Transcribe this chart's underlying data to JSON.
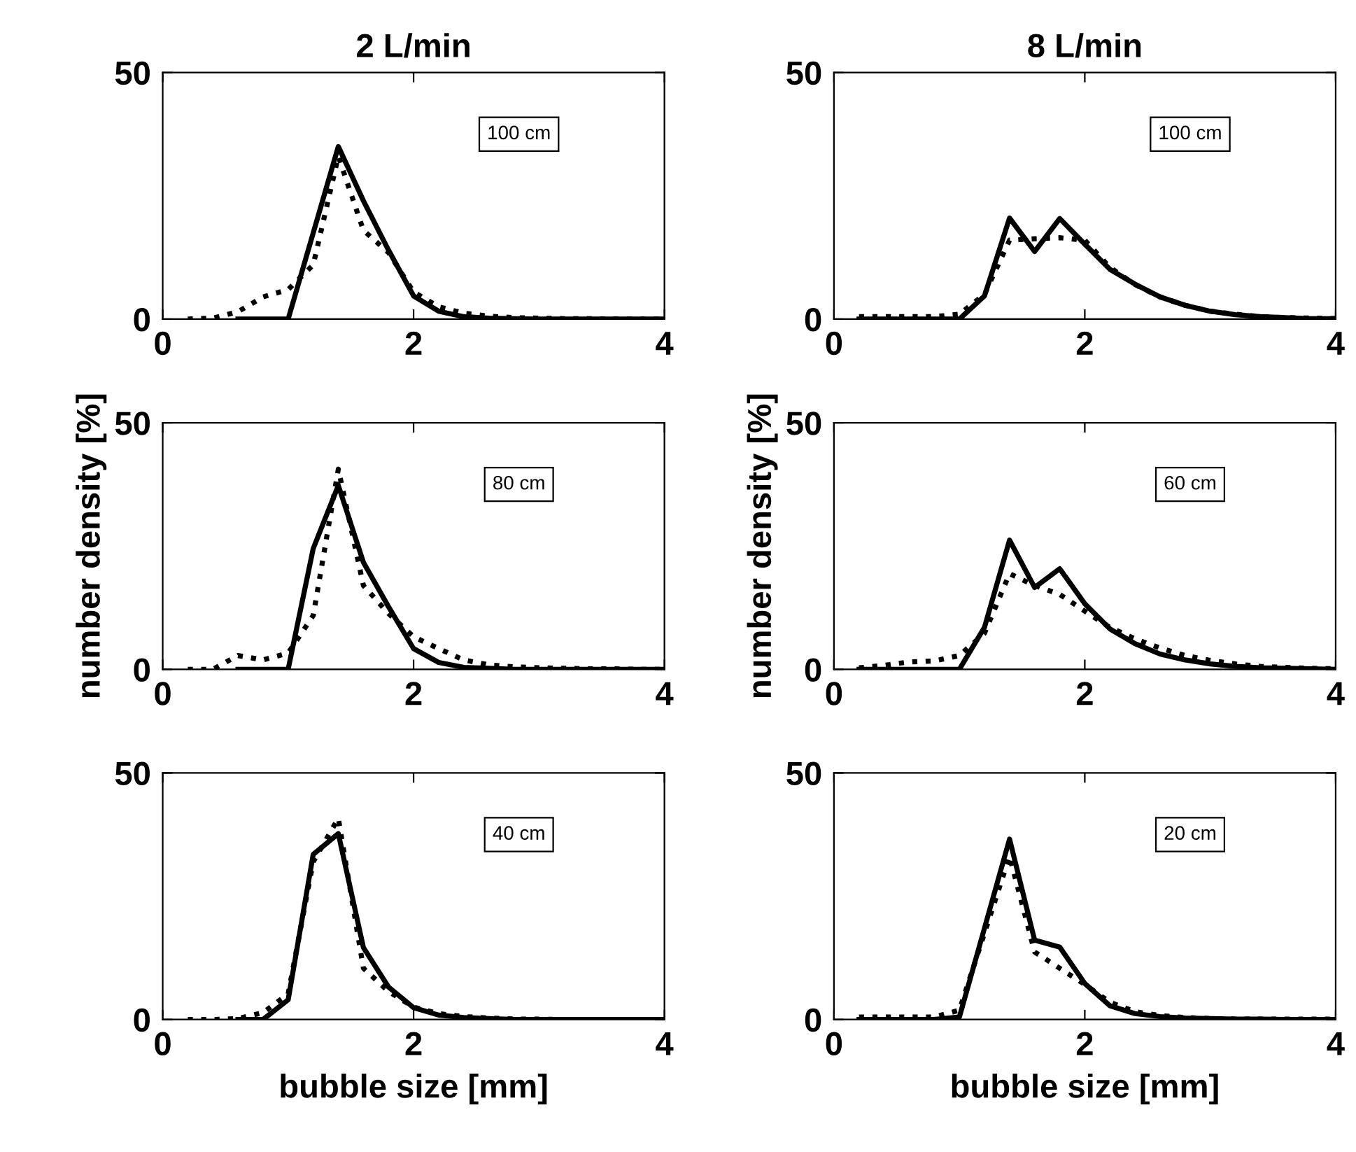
{
  "chart_data": [
    {
      "type": "line",
      "title": "2 L/min",
      "annotations": [
        "100 cm"
      ],
      "x": [
        0.2,
        0.4,
        0.6,
        0.8,
        1.0,
        1.2,
        1.4,
        1.6,
        1.8,
        2.0,
        2.2,
        2.4,
        2.6,
        2.8,
        3.0,
        3.2,
        3.4,
        3.6,
        3.8,
        4.0
      ],
      "xlim": [
        0,
        4
      ],
      "xticks": [
        0,
        2,
        4
      ],
      "ylim": [
        0,
        50
      ],
      "yticks": [
        0,
        50
      ],
      "series": [
        {
          "color": "#000000",
          "line_style": "solid",
          "values": [
            null,
            null,
            0,
            0,
            0,
            17.5,
            35,
            24,
            14,
            4.7,
            1.6,
            0.5,
            0.2,
            0.1,
            0,
            0,
            0,
            0,
            0,
            0
          ]
        },
        {
          "color": "#000000",
          "line_style": "dotted",
          "values": [
            0,
            0.2,
            1.5,
            4.5,
            6,
            11,
            33,
            18,
            13.5,
            5.5,
            2.5,
            1.2,
            0.6,
            0.3,
            0.2,
            0.1,
            0.1,
            0,
            0,
            0
          ]
        }
      ]
    },
    {
      "type": "line",
      "title": "8 L/min",
      "annotations": [
        "100 cm"
      ],
      "x": [
        0.2,
        0.4,
        0.6,
        0.8,
        1.0,
        1.2,
        1.4,
        1.6,
        1.8,
        2.0,
        2.2,
        2.4,
        2.6,
        2.8,
        3.0,
        3.2,
        3.4,
        3.6,
        3.8,
        4.0
      ],
      "xlim": [
        0,
        4
      ],
      "xticks": [
        0,
        2,
        4
      ],
      "ylim": [
        0,
        50
      ],
      "yticks": [
        0,
        50
      ],
      "series": [
        {
          "color": "#000000",
          "line_style": "solid",
          "values": [
            0,
            0,
            0,
            0,
            0,
            4.7,
            20.5,
            13.7,
            20.4,
            15.2,
            10.1,
            7.1,
            4.5,
            2.8,
            1.6,
            0.9,
            0.5,
            0.3,
            0.1,
            0.1
          ]
        },
        {
          "color": "#000000",
          "line_style": "dotted",
          "values": [
            0.5,
            0.5,
            0.5,
            0.5,
            1,
            5,
            16,
            16.3,
            16.5,
            16,
            10.5,
            7,
            4.5,
            2.8,
            1.6,
            1,
            0.5,
            0.3,
            0.2,
            0.1
          ]
        }
      ]
    },
    {
      "type": "line",
      "ylabel": "number density [%]",
      "annotations": [
        "80 cm"
      ],
      "x": [
        0.2,
        0.4,
        0.6,
        0.8,
        1.0,
        1.2,
        1.4,
        1.6,
        1.8,
        2.0,
        2.2,
        2.4,
        2.6,
        2.8,
        3.0,
        3.2,
        3.4,
        3.6,
        3.8,
        4.0
      ],
      "xlim": [
        0,
        4
      ],
      "xticks": [
        0,
        2,
        4
      ],
      "ylim": [
        0,
        50
      ],
      "yticks": [
        0,
        50
      ],
      "series": [
        {
          "color": "#000000",
          "line_style": "solid",
          "values": [
            null,
            null,
            0,
            0,
            0,
            24.5,
            37.3,
            21.7,
            12.7,
            4.2,
            1.4,
            0.4,
            0.2,
            0,
            0,
            0,
            0,
            0,
            0,
            0
          ]
        },
        {
          "color": "#000000",
          "line_style": "dotted",
          "values": [
            0,
            0,
            2.8,
            1.9,
            3.3,
            10.9,
            40.6,
            17,
            11.3,
            6.6,
            4.2,
            1.9,
            0.9,
            0.5,
            0.3,
            0.2,
            0.1,
            0.1,
            0,
            0
          ]
        }
      ]
    },
    {
      "type": "line",
      "ylabel": "number density [%]",
      "annotations": [
        "60 cm"
      ],
      "x": [
        0.2,
        0.4,
        0.6,
        0.8,
        1.0,
        1.2,
        1.4,
        1.6,
        1.8,
        2.0,
        2.2,
        2.4,
        2.6,
        2.8,
        3.0,
        3.2,
        3.4,
        3.6,
        3.8,
        4.0
      ],
      "xlim": [
        0,
        4
      ],
      "xticks": [
        0,
        2,
        4
      ],
      "ylim": [
        0,
        50
      ],
      "yticks": [
        0,
        50
      ],
      "series": [
        {
          "color": "#000000",
          "line_style": "solid",
          "values": [
            0,
            0,
            0,
            0,
            0,
            8.5,
            26.2,
            16.6,
            20.4,
            13.3,
            8.2,
            5.2,
            3.1,
            1.9,
            1.1,
            0.6,
            0.3,
            0.2,
            0.1,
            0
          ]
        },
        {
          "color": "#000000",
          "line_style": "dotted",
          "values": [
            0.3,
            0.8,
            1.5,
            1.7,
            2.8,
            7.3,
            19.4,
            17,
            15.2,
            11.8,
            8.5,
            6.2,
            4.3,
            2.8,
            1.8,
            1.1,
            0.6,
            0.4,
            0.2,
            0.1
          ]
        }
      ]
    },
    {
      "type": "line",
      "xlabel": "bubble size [mm]",
      "annotations": [
        "40 cm"
      ],
      "x": [
        0.2,
        0.4,
        0.6,
        0.8,
        1.0,
        1.2,
        1.4,
        1.6,
        1.8,
        2.0,
        2.2,
        2.4,
        2.6,
        2.8,
        3.0,
        3.2,
        3.4,
        3.6,
        3.8,
        4.0
      ],
      "xlim": [
        0,
        4
      ],
      "xticks": [
        0,
        2,
        4
      ],
      "ylim": [
        0,
        50
      ],
      "yticks": [
        0,
        50
      ],
      "series": [
        {
          "color": "#000000",
          "line_style": "solid",
          "values": [
            null,
            null,
            0,
            0,
            4,
            33.5,
            37.7,
            14.6,
            6.6,
            2.4,
            0.9,
            0.4,
            0.2,
            0,
            0,
            0,
            0,
            0,
            0,
            0
          ]
        },
        {
          "color": "#000000",
          "line_style": "dotted",
          "values": [
            0,
            0,
            0.2,
            1.4,
            5.2,
            32,
            40.8,
            10.4,
            5.7,
            2.5,
            1.2,
            0.6,
            0.3,
            0.1,
            0.1,
            0,
            0,
            0,
            0,
            0
          ]
        }
      ]
    },
    {
      "type": "line",
      "xlabel": "bubble size [mm]",
      "annotations": [
        "20 cm"
      ],
      "x": [
        0.2,
        0.4,
        0.6,
        0.8,
        1.0,
        1.2,
        1.4,
        1.6,
        1.8,
        2.0,
        2.2,
        2.4,
        2.6,
        2.8,
        3.0,
        3.2,
        3.4,
        3.6,
        3.8,
        4.0
      ],
      "xlim": [
        0,
        4
      ],
      "xticks": [
        0,
        2,
        4
      ],
      "ylim": [
        0,
        50
      ],
      "yticks": [
        0,
        50
      ],
      "series": [
        {
          "color": "#000000",
          "line_style": "solid",
          "values": [
            0,
            0,
            0,
            0,
            0.5,
            18.5,
            36.6,
            16.1,
            14.7,
            7.3,
            2.8,
            1.2,
            0.6,
            0.3,
            0.2,
            0.1,
            0.1,
            0,
            0,
            0
          ]
        },
        {
          "color": "#000000",
          "line_style": "dotted",
          "values": [
            0.5,
            0.5,
            0.5,
            0.5,
            1.9,
            17.5,
            33.1,
            13.7,
            10.4,
            7.1,
            3.5,
            1.6,
            0.8,
            0.4,
            0.2,
            0.1,
            0.1,
            0.1,
            0.1,
            0.1
          ]
        }
      ]
    }
  ]
}
